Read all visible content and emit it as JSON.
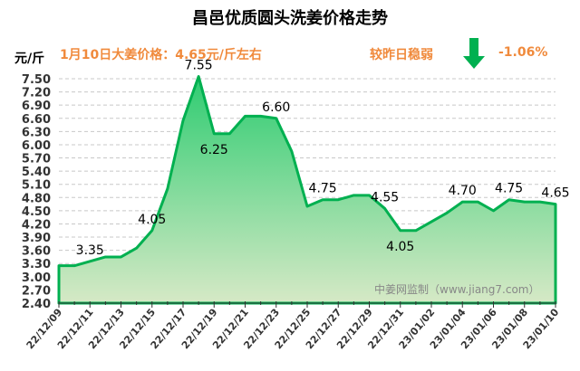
{
  "chart_data": {
    "type": "area",
    "title": "昌邑优质圆头洗姜价格走势",
    "ylabel": "元/斤",
    "ylim": [
      2.4,
      7.5
    ],
    "yticks": [
      "2.40",
      "2.70",
      "3.00",
      "3.30",
      "3.60",
      "3.90",
      "4.20",
      "4.50",
      "4.80",
      "5.10",
      "5.40",
      "5.70",
      "6.00",
      "6.30",
      "6.60",
      "6.90",
      "7.20",
      "7.50"
    ],
    "grid": true,
    "x": [
      "22/12/09",
      "22/12/10",
      "22/12/11",
      "22/12/12",
      "22/12/13",
      "22/12/14",
      "22/12/15",
      "22/12/16",
      "22/12/17",
      "22/12/18",
      "22/12/19",
      "22/12/20",
      "22/12/21",
      "22/12/22",
      "22/12/23",
      "22/12/24",
      "22/12/25",
      "22/12/26",
      "22/12/27",
      "22/12/28",
      "22/12/29",
      "22/12/30",
      "22/12/31",
      "23/01/01",
      "23/01/02",
      "23/01/03",
      "23/01/04",
      "23/01/05",
      "23/01/06",
      "23/01/07",
      "23/01/08",
      "23/01/09",
      "23/01/10"
    ],
    "xtick_labels": [
      "22/12/09",
      "22/12/11",
      "22/12/13",
      "22/12/15",
      "22/12/17",
      "22/12/19",
      "22/12/21",
      "22/12/23",
      "22/12/25",
      "22/12/27",
      "22/12/29",
      "22/12/31",
      "23/01/02",
      "23/01/04",
      "23/01/06",
      "23/01/08",
      "23/01/10"
    ],
    "values": [
      3.25,
      3.25,
      3.35,
      3.45,
      3.45,
      3.65,
      4.05,
      5.0,
      6.55,
      7.55,
      6.25,
      6.25,
      6.65,
      6.65,
      6.6,
      5.85,
      4.6,
      4.75,
      4.75,
      4.85,
      4.85,
      4.55,
      4.05,
      4.05,
      4.25,
      4.45,
      4.7,
      4.7,
      4.5,
      4.75,
      4.7,
      4.7,
      4.65
    ],
    "data_labels": [
      {
        "index": 2,
        "text": "3.35",
        "pos": "above"
      },
      {
        "index": 6,
        "text": "4.05",
        "pos": "above"
      },
      {
        "index": 9,
        "text": "7.55",
        "pos": "above"
      },
      {
        "index": 10,
        "text": "6.25",
        "pos": "below"
      },
      {
        "index": 14,
        "text": "6.60",
        "pos": "above"
      },
      {
        "index": 17,
        "text": "4.75",
        "pos": "above"
      },
      {
        "index": 21,
        "text": "4.55",
        "pos": "above"
      },
      {
        "index": 22,
        "text": "4.05",
        "pos": "below"
      },
      {
        "index": 26,
        "text": "4.70",
        "pos": "above"
      },
      {
        "index": 29,
        "text": "4.75",
        "pos": "above"
      },
      {
        "index": 32,
        "text": "4.65",
        "pos": "above"
      }
    ],
    "colors": {
      "line": "#00b050",
      "fill_top": "#2ecc71",
      "fill_bottom": "#d6e9c6"
    }
  },
  "header": {
    "price_text": "1月10日大姜价格：4.65元/斤左右",
    "compare_text": "较昨日稳弱",
    "change_pct": "-1.06%",
    "trend_icon": "arrow-down-icon",
    "arrow_color": "#00b050"
  },
  "watermark": "中姜网监制（www.jiang7.com）"
}
